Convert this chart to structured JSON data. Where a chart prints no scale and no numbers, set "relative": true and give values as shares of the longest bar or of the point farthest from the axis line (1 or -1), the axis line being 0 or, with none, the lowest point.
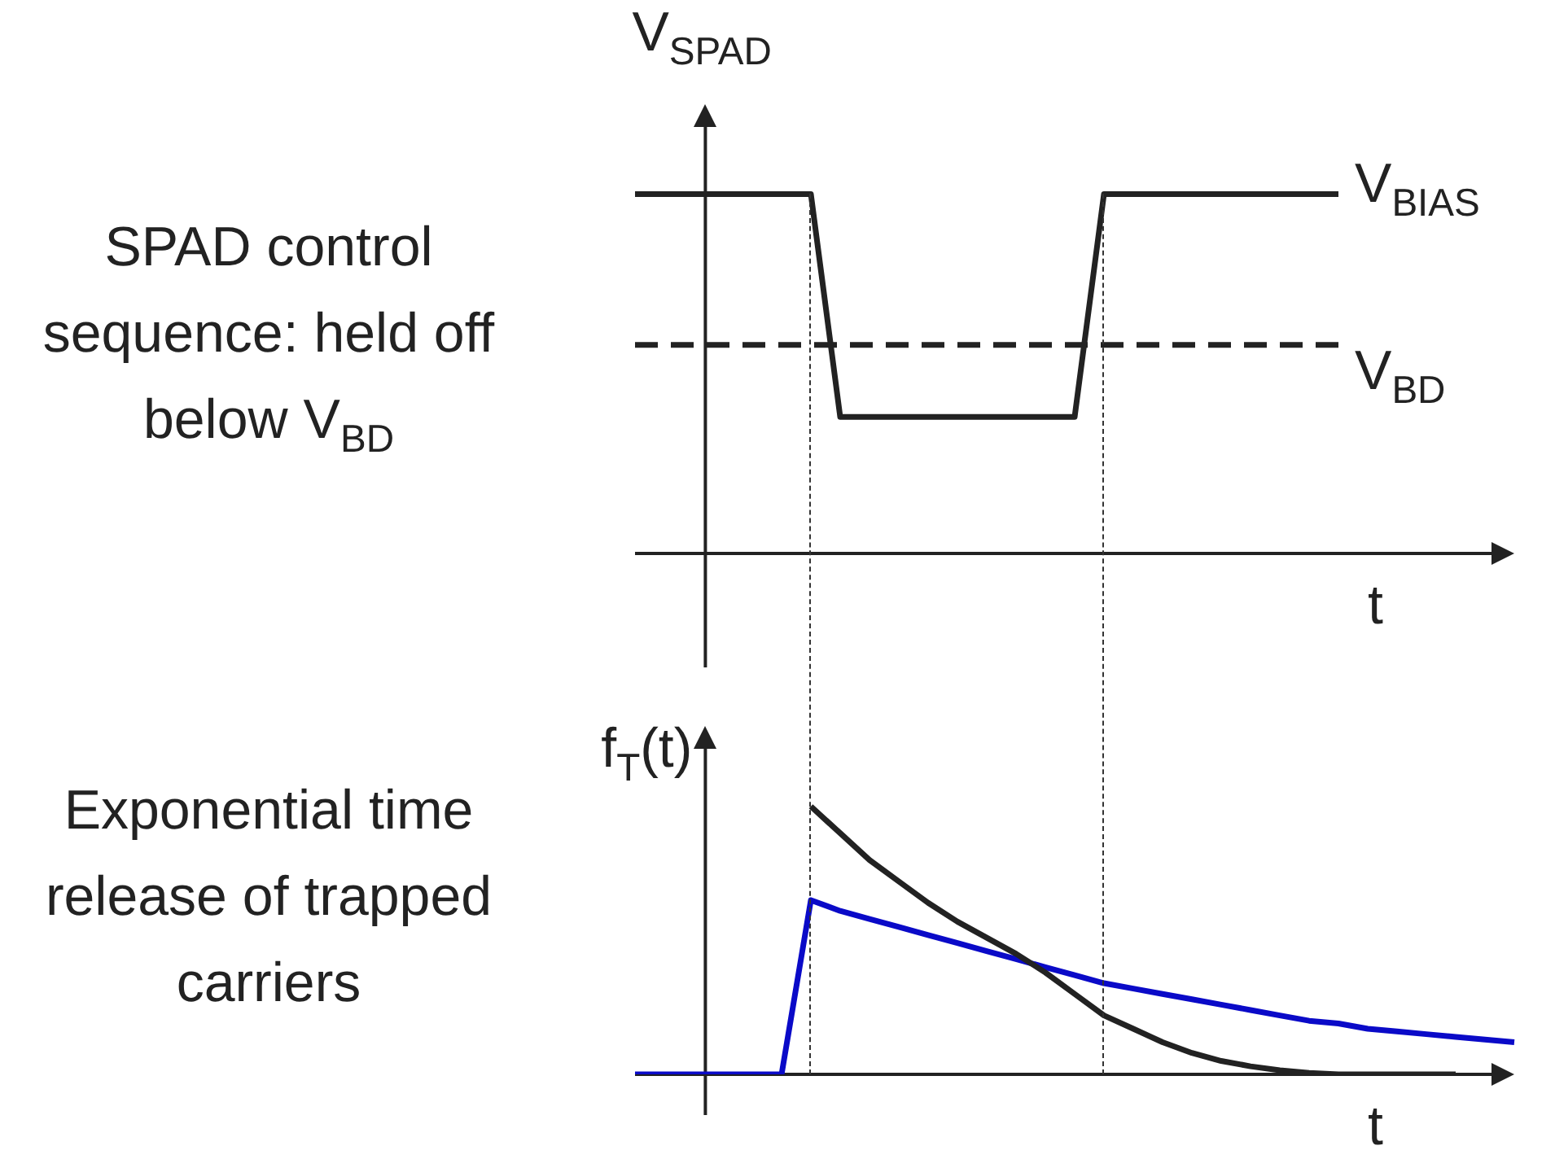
{
  "chart_data": [
    {
      "type": "line",
      "relative": true,
      "ylabel": "V$_{SPAD}$",
      "xlabel": "t",
      "tick_labels": false,
      "marker": "none",
      "annotations": [
        "SPAD control sequence: held off below V$_{BD}$"
      ],
      "categories": [
        null,
        null,
        null,
        null,
        null,
        null,
        null,
        null,
        null,
        null,
        null,
        null,
        null,
        null,
        null,
        null,
        null,
        null,
        null,
        null,
        null,
        null,
        null,
        null,
        null,
        null,
        null,
        null,
        null,
        null,
        null
      ],
      "series": [
        {
          "name": "V$_{BIAS}$",
          "color": "#222222",
          "line_style": "solid",
          "values": [
            1,
            1,
            1,
            1,
            1,
            1,
            1,
            0.38,
            0.38,
            0.38,
            0.38,
            0.38,
            0.38,
            0.38,
            0.38,
            0.38,
            1,
            1,
            1,
            1,
            1,
            1,
            1,
            1,
            1,
            null,
            null,
            null,
            null,
            null,
            null
          ]
        },
        {
          "name": "V$_{BD}$",
          "color": "#222222",
          "line_style": "dashed",
          "values": [
            0.58,
            0.58,
            0.58,
            0.58,
            0.58,
            0.58,
            0.58,
            0.58,
            0.58,
            0.58,
            0.58,
            0.58,
            0.58,
            0.58,
            0.58,
            0.58,
            0.58,
            0.58,
            0.58,
            0.58,
            0.58,
            0.58,
            0.58,
            0.58,
            0.58,
            null,
            null,
            null,
            null,
            null,
            null
          ]
        }
      ]
    },
    {
      "type": "line",
      "relative": true,
      "ylabel": "f$_{T}$(t)",
      "xlabel": "t",
      "tick_labels": false,
      "marker": "none",
      "annotations": [
        "Exponential time release of trapped carriers"
      ],
      "categories": [
        null,
        null,
        null,
        null,
        null,
        null,
        null,
        null,
        null,
        null,
        null,
        null,
        null,
        null,
        null,
        null,
        null,
        null,
        null,
        null,
        null,
        null,
        null,
        null,
        null,
        null,
        null,
        null,
        null,
        null,
        null
      ],
      "series": [
        {
          "color": "#222222",
          "line_style": "solid",
          "values": [
            null,
            null,
            null,
            null,
            null,
            null,
            1,
            0.9,
            0.8,
            0.72,
            0.64,
            0.57,
            0.51,
            0.45,
            0.38,
            0.3,
            0.22,
            0.17,
            0.12,
            0.08,
            0.05,
            0.03,
            0.015,
            0.005,
            0,
            0,
            0,
            0,
            0,
            null,
            null
          ]
        },
        {
          "color": "#0a0ac8",
          "line_style": "solid",
          "values": [
            0,
            0,
            0,
            0,
            0,
            0,
            0.65,
            0.61,
            0.58,
            0.55,
            0.52,
            0.49,
            0.46,
            0.43,
            0.4,
            0.37,
            0.34,
            0.32,
            0.3,
            0.28,
            0.26,
            0.24,
            0.22,
            0.2,
            0.19,
            0.17,
            0.16,
            0.15,
            0.14,
            0.13,
            0.12
          ]
        }
      ]
    }
  ]
}
